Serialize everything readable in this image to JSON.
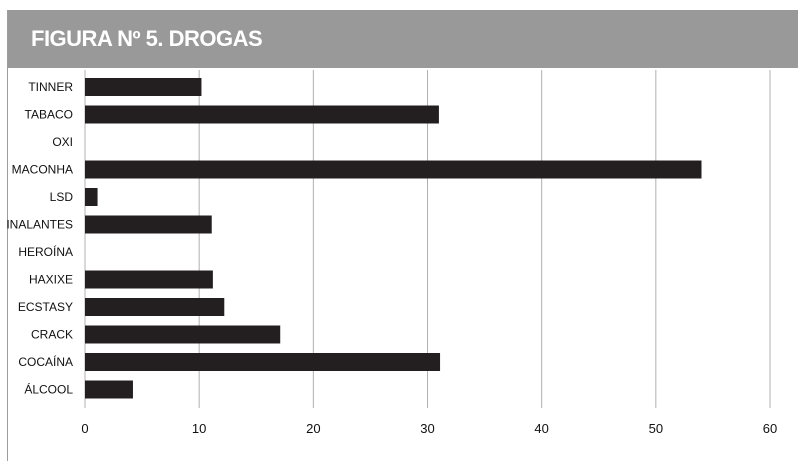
{
  "figure": {
    "title": "FIGURA Nº 5. DROGAS"
  },
  "colors": {
    "title_bar": "#999999",
    "bar": "#231f20",
    "grid": "#b0b0b0"
  },
  "chart_data": {
    "type": "bar",
    "orientation": "horizontal",
    "categories": [
      "TINNER",
      "TABACO",
      "OXI",
      "MACONHA",
      "LSD",
      "INALANTES",
      "HEROÍNA",
      "HAXIXE",
      "ECSTASY",
      "CRACK",
      "COCAÍNA",
      "ÁLCOOL"
    ],
    "values": [
      10.2,
      31,
      0,
      54,
      1.1,
      11.1,
      0,
      11.2,
      12.2,
      17.1,
      31.1,
      4.2
    ],
    "xlim": [
      0,
      60
    ],
    "x_ticks": [
      "0",
      "10",
      "20",
      "30",
      "40",
      "50",
      "60"
    ],
    "grid": true,
    "legend": "none"
  }
}
